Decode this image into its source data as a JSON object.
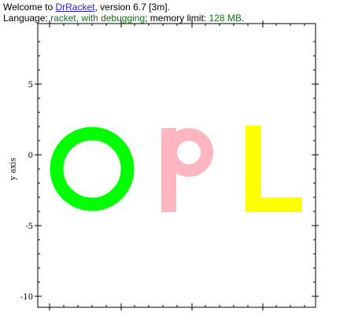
{
  "repl": {
    "welcome_prefix": "Welcome to ",
    "app_link": "DrRacket",
    "welcome_suffix": ", version 6.7 [3m].",
    "language_prefix": "Language: ",
    "language_value": "racket, with debugging",
    "memory_prefix": "; memory limit: ",
    "memory_value": "128 MB",
    "memory_suffix": "."
  },
  "colors": {
    "link": "#2a1fd6",
    "repl_green": "#146e16",
    "letter_o": "#00ff00",
    "letter_p": "#ffb6c1",
    "letter_l": "#ffff00"
  },
  "chart_data": {
    "type": "scatter",
    "ylabel": "y axis",
    "xlabel": "",
    "ylim": [
      -10,
      8
    ],
    "y_ticks": [
      5,
      0,
      -5,
      -10
    ],
    "y_tick_labels": [
      "5",
      "0",
      "-5",
      "-10"
    ],
    "grid": false,
    "shapes": [
      {
        "name": "O",
        "shape": "ring",
        "color": "#00ff00"
      },
      {
        "name": "P",
        "shape": "letter-p",
        "color": "#ffb6c1"
      },
      {
        "name": "L",
        "shape": "letter-l",
        "color": "#ffff00"
      }
    ]
  }
}
